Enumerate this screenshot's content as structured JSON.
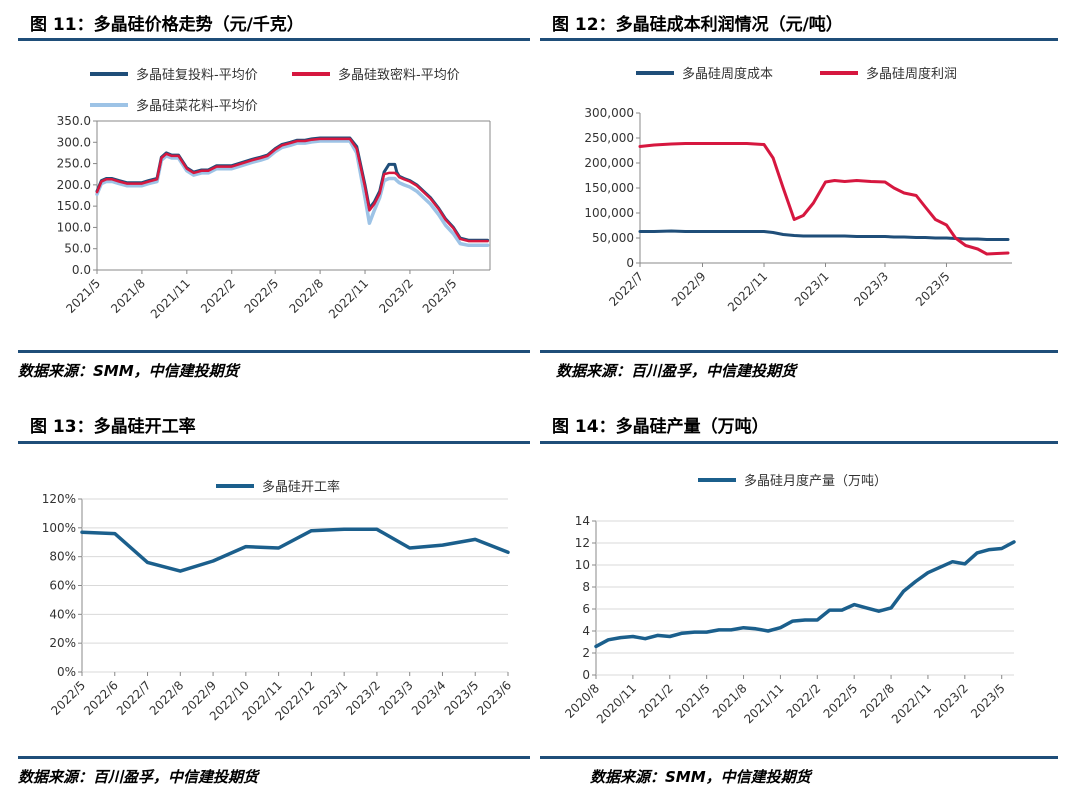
{
  "panels": {
    "p11": {
      "title": "图 11：多晶硅价格走势（元/千克）",
      "source": "数据来源：SMM，中信建投期货"
    },
    "p12": {
      "title": "图 12：多晶硅成本利润情况（元/吨）",
      "source": "数据来源：百川盈孚，中信建投期货"
    },
    "p13": {
      "title": "图 13：多晶硅开工率",
      "source": "数据来源：百川盈孚，中信建投期货"
    },
    "p14": {
      "title": "图 14：多晶硅产量（万吨）",
      "source": "数据来源：SMM，中信建投期货"
    }
  },
  "colors": {
    "rule": "#1f4e79",
    "navy": "#1f4e79",
    "crimson": "#d6173f",
    "lightblue": "#9dc3e6",
    "teal": "#1b5f8c"
  },
  "chart_data": [
    {
      "type": "line",
      "x": [
        "2021-05-01",
        "2021-05-10",
        "2021-05-20",
        "2021-06-01",
        "2021-06-15",
        "2021-07-01",
        "2021-07-15",
        "2021-08-01",
        "2021-08-15",
        "2021-09-01",
        "2021-09-10",
        "2021-09-20",
        "2021-10-01",
        "2021-10-15",
        "2021-11-01",
        "2021-11-15",
        "2021-12-01",
        "2021-12-15",
        "2022-01-01",
        "2022-01-15",
        "2022-02-01",
        "2022-02-15",
        "2022-03-01",
        "2022-03-15",
        "2022-04-01",
        "2022-04-15",
        "2022-05-01",
        "2022-05-15",
        "2022-06-01",
        "2022-06-15",
        "2022-07-01",
        "2022-07-15",
        "2022-08-01",
        "2022-08-15",
        "2022-09-01",
        "2022-09-15",
        "2022-10-01",
        "2022-10-15",
        "2022-11-01",
        "2022-11-10",
        "2022-11-20",
        "2022-12-01",
        "2022-12-10",
        "2022-12-20",
        "2023-01-01",
        "2023-01-05",
        "2023-01-10",
        "2023-01-20",
        "2023-02-01",
        "2023-02-15",
        "2023-03-01",
        "2023-03-15",
        "2023-04-01",
        "2023-04-15",
        "2023-05-01",
        "2023-05-15",
        "2023-06-01",
        "2023-06-15",
        "2023-07-01",
        "2023-07-10"
      ],
      "series": [
        {
          "name": "多晶硅复投料-平均价",
          "values": [
            185,
            210,
            215,
            215,
            210,
            205,
            205,
            205,
            210,
            215,
            265,
            275,
            270,
            270,
            240,
            230,
            235,
            235,
            245,
            245,
            245,
            250,
            255,
            260,
            265,
            270,
            285,
            295,
            300,
            305,
            305,
            308,
            310,
            310,
            310,
            310,
            310,
            290,
            200,
            145,
            160,
            185,
            230,
            248,
            248,
            230,
            220,
            215,
            210,
            200,
            185,
            170,
            145,
            120,
            100,
            75,
            70,
            70,
            70,
            70
          ]
        },
        {
          "name": "多晶硅致密料-平均价",
          "values": [
            183,
            208,
            213,
            213,
            208,
            203,
            203,
            203,
            208,
            213,
            263,
            273,
            268,
            268,
            238,
            228,
            233,
            233,
            243,
            243,
            243,
            248,
            253,
            258,
            263,
            268,
            283,
            293,
            298,
            303,
            303,
            306,
            308,
            308,
            308,
            308,
            308,
            285,
            195,
            140,
            155,
            180,
            225,
            228,
            228,
            225,
            218,
            213,
            208,
            198,
            183,
            168,
            143,
            118,
            98,
            73,
            68,
            68,
            68,
            68
          ]
        },
        {
          "name": "多晶硅菜花料-平均价",
          "values": [
            178,
            203,
            208,
            208,
            203,
            198,
            198,
            198,
            203,
            208,
            258,
            268,
            263,
            263,
            233,
            223,
            228,
            228,
            238,
            238,
            238,
            243,
            248,
            253,
            258,
            263,
            278,
            288,
            293,
            298,
            298,
            301,
            303,
            303,
            303,
            303,
            303,
            275,
            170,
            110,
            140,
            170,
            210,
            215,
            215,
            210,
            205,
            200,
            195,
            185,
            170,
            155,
            130,
            105,
            85,
            62,
            58,
            58,
            58,
            58
          ]
        }
      ],
      "y_ticks": [
        "0.0",
        "50.0",
        "100.0",
        "150.0",
        "200.0",
        "250.0",
        "300.0",
        "350.0"
      ],
      "x_ticks": [
        "2021/5",
        "2021/8",
        "2021/11",
        "2022/2",
        "2022/5",
        "2022/8",
        "2022/11",
        "2023/2",
        "2023/5"
      ],
      "ylim": [
        0,
        350
      ]
    },
    {
      "type": "line",
      "x": [
        "2022-07-01",
        "2022-07-15",
        "2022-08-01",
        "2022-08-15",
        "2022-09-01",
        "2022-09-15",
        "2022-10-01",
        "2022-10-15",
        "2022-11-01",
        "2022-11-10",
        "2022-11-20",
        "2022-12-01",
        "2022-12-10",
        "2022-12-20",
        "2023-01-01",
        "2023-01-10",
        "2023-01-20",
        "2023-02-01",
        "2023-02-15",
        "2023-03-01",
        "2023-03-10",
        "2023-03-20",
        "2023-04-01",
        "2023-04-10",
        "2023-04-20",
        "2023-05-01",
        "2023-05-10",
        "2023-05-20",
        "2023-06-01",
        "2023-06-10",
        "2023-06-20",
        "2023-07-01"
      ],
      "series": [
        {
          "name": "多晶硅周度成本",
          "values": [
            63000,
            63000,
            64000,
            63000,
            63000,
            63000,
            63000,
            63000,
            63000,
            61000,
            57000,
            55000,
            54000,
            54000,
            54000,
            54000,
            54000,
            53000,
            53000,
            53000,
            52000,
            52000,
            51000,
            51000,
            50000,
            50000,
            49000,
            48000,
            48000,
            47000,
            47000,
            47000
          ]
        },
        {
          "name": "多晶硅周度利润",
          "values": [
            233000,
            236000,
            238000,
            239000,
            239000,
            239000,
            239000,
            239000,
            237000,
            210000,
            150000,
            87000,
            95000,
            120000,
            162000,
            165000,
            163000,
            165000,
            163000,
            162000,
            150000,
            140000,
            135000,
            112000,
            87000,
            76000,
            50000,
            35000,
            28000,
            18000,
            19000,
            20000
          ]
        }
      ],
      "y_ticks": [
        "0",
        "50,000",
        "100,000",
        "150,000",
        "200,000",
        "250,000",
        "300,000"
      ],
      "x_ticks": [
        "2022/7",
        "2022/9",
        "2022/11",
        "2023/1",
        "2023/3",
        "2023/5"
      ],
      "ylim": [
        0,
        300000
      ]
    },
    {
      "type": "line",
      "categories": [
        "2022/5",
        "2022/6",
        "2022/7",
        "2022/8",
        "2022/9",
        "2022/10",
        "2022/11",
        "2022/12",
        "2023/1",
        "2023/2",
        "2023/3",
        "2023/4",
        "2023/5",
        "2023/6"
      ],
      "series": [
        {
          "name": "多晶硅开工率",
          "values": [
            97,
            96,
            76,
            70,
            77,
            87,
            86,
            98,
            99,
            99,
            86,
            88,
            92,
            83
          ]
        }
      ],
      "y_ticks": [
        "0%",
        "20%",
        "40%",
        "60%",
        "80%",
        "100%",
        "120%"
      ],
      "ylim": [
        0,
        120
      ]
    },
    {
      "type": "line",
      "categories": [
        "2020/8",
        "2020/9",
        "2020/10",
        "2020/11",
        "2020/12",
        "2021/1",
        "2021/2",
        "2021/3",
        "2021/4",
        "2021/5",
        "2021/6",
        "2021/7",
        "2021/8",
        "2021/9",
        "2021/10",
        "2021/11",
        "2021/12",
        "2022/1",
        "2022/2",
        "2022/3",
        "2022/4",
        "2022/5",
        "2022/6",
        "2022/7",
        "2022/8",
        "2022/9",
        "2022/10",
        "2022/11",
        "2022/12",
        "2023/1",
        "2023/2",
        "2023/3",
        "2023/4",
        "2023/5",
        "2023/6"
      ],
      "series": [
        {
          "name": "多晶硅月度产量（万吨）",
          "values": [
            2.6,
            3.2,
            3.4,
            3.5,
            3.3,
            3.6,
            3.5,
            3.8,
            3.9,
            3.9,
            4.1,
            4.1,
            4.3,
            4.2,
            4.0,
            4.3,
            4.9,
            5.0,
            5.0,
            5.9,
            5.9,
            6.4,
            6.1,
            5.8,
            6.1,
            7.6,
            8.5,
            9.3,
            9.8,
            10.3,
            10.1,
            11.1,
            11.4,
            11.5,
            12.1
          ]
        }
      ],
      "y_ticks": [
        "0",
        "2",
        "4",
        "6",
        "8",
        "10",
        "12",
        "14"
      ],
      "x_ticks": [
        "2020/8",
        "2020/11",
        "2021/2",
        "2021/5",
        "2021/8",
        "2021/11",
        "2022/2",
        "2022/5",
        "2022/8",
        "2022/11",
        "2023/2",
        "2023/5"
      ],
      "ylim": [
        0,
        14
      ]
    }
  ]
}
